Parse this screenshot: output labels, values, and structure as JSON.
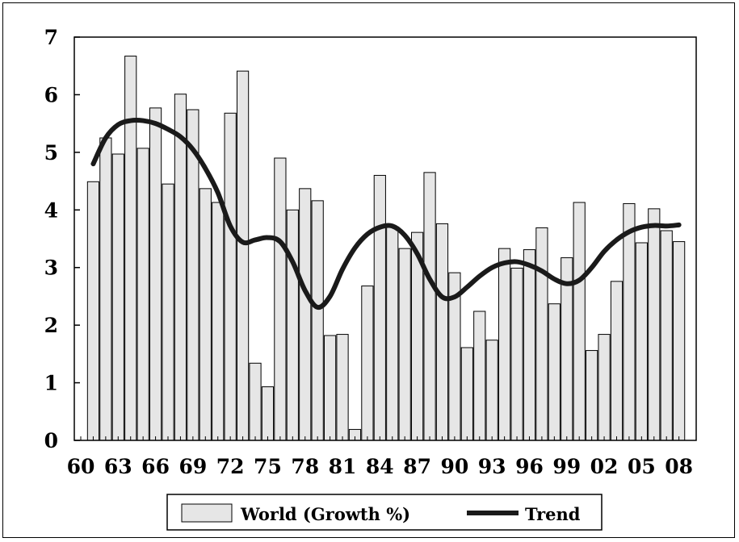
{
  "chart_data": {
    "type": "bar",
    "title": "",
    "xlabel": "",
    "ylabel": "",
    "ylim": [
      0,
      7
    ],
    "yticks": [
      0,
      1,
      2,
      3,
      4,
      5,
      6,
      7
    ],
    "x_tick_labels": [
      "60",
      "63",
      "66",
      "69",
      "72",
      "75",
      "78",
      "81",
      "84",
      "87",
      "90",
      "93",
      "96",
      "99",
      "02",
      "05",
      "08"
    ],
    "grid": false,
    "legend_position": "bottom",
    "years": [
      1961,
      1962,
      1963,
      1964,
      1965,
      1966,
      1967,
      1968,
      1969,
      1970,
      1971,
      1972,
      1973,
      1974,
      1975,
      1976,
      1977,
      1978,
      1979,
      1980,
      1981,
      1982,
      1983,
      1984,
      1985,
      1986,
      1987,
      1988,
      1989,
      1990,
      1991,
      1992,
      1993,
      1994,
      1995,
      1996,
      1997,
      1998,
      1999,
      2000,
      2001,
      2002,
      2003,
      2004,
      2005,
      2006,
      2007,
      2008
    ],
    "series": [
      {
        "name": "World (Growth %)",
        "kind": "bar",
        "color": "#e6e6e6",
        "values": [
          4.49,
          5.25,
          4.97,
          6.67,
          5.07,
          5.77,
          4.45,
          6.01,
          5.74,
          4.37,
          4.13,
          5.68,
          6.41,
          1.34,
          0.93,
          4.9,
          4.0,
          4.37,
          4.16,
          1.82,
          1.84,
          0.19,
          2.68,
          4.6,
          3.71,
          3.33,
          3.61,
          4.65,
          3.76,
          2.91,
          1.61,
          2.24,
          1.74,
          3.33,
          2.99,
          3.31,
          3.69,
          2.37,
          3.17,
          4.13,
          1.56,
          1.84,
          2.76,
          4.11,
          3.43,
          4.02,
          3.64,
          3.45
        ]
      },
      {
        "name": "Trend",
        "kind": "line",
        "color": "#1a1a1a",
        "values": [
          4.8,
          5.25,
          5.48,
          5.55,
          5.55,
          5.5,
          5.4,
          5.27,
          5.05,
          4.72,
          4.3,
          3.72,
          3.44,
          3.48,
          3.52,
          3.45,
          3.1,
          2.6,
          2.31,
          2.5,
          2.97,
          3.34,
          3.58,
          3.7,
          3.72,
          3.56,
          3.24,
          2.8,
          2.49,
          2.49,
          2.66,
          2.85,
          3.0,
          3.08,
          3.1,
          3.04,
          2.94,
          2.8,
          2.72,
          2.78,
          3.0,
          3.28,
          3.48,
          3.62,
          3.7,
          3.73,
          3.72,
          3.74
        ]
      }
    ]
  }
}
